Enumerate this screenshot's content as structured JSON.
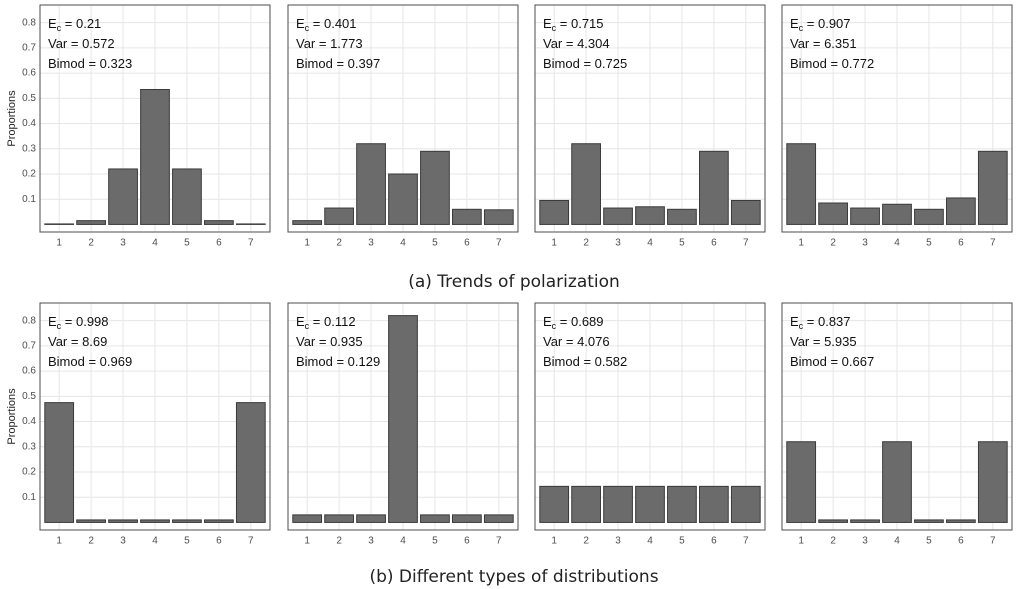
{
  "captions": [
    "(a) Trends of polarization",
    "(b) Different types of distributions"
  ],
  "chart_data": [
    {
      "type": "bar",
      "ylabel": "Proportions",
      "categories": [
        "1",
        "2",
        "3",
        "4",
        "5",
        "6",
        "7"
      ],
      "values": [
        0.002,
        0.015,
        0.22,
        0.535,
        0.22,
        0.015,
        0.002
      ],
      "annotations": [
        [
          "E",
          "c",
          " = 0.21"
        ],
        [
          "Var =  0.572"
        ],
        [
          "Bimod = 0.323"
        ]
      ],
      "color": "#6b6b6b",
      "ylim": [
        -0.03,
        0.87
      ],
      "yticks": [
        0.1,
        0.2,
        0.3,
        0.4,
        0.5,
        0.6,
        0.7,
        0.8
      ],
      "grid": true
    },
    {
      "type": "bar",
      "categories": [
        "1",
        "2",
        "3",
        "4",
        "5",
        "6",
        "7"
      ],
      "values": [
        0.015,
        0.065,
        0.32,
        0.2,
        0.29,
        0.06,
        0.058
      ],
      "annotations": [
        [
          "E",
          "c",
          " = 0.401"
        ],
        [
          "Var =  1.773"
        ],
        [
          "Bimod = 0.397"
        ]
      ],
      "color": "#6b6b6b",
      "ylim": [
        -0.03,
        0.87
      ],
      "yticks": [
        0.1,
        0.2,
        0.3,
        0.4,
        0.5,
        0.6,
        0.7,
        0.8
      ],
      "grid": true
    },
    {
      "type": "bar",
      "categories": [
        "1",
        "2",
        "3",
        "4",
        "5",
        "6",
        "7"
      ],
      "values": [
        0.095,
        0.32,
        0.065,
        0.07,
        0.06,
        0.29,
        0.095
      ],
      "annotations": [
        [
          "E",
          "c",
          " = 0.715"
        ],
        [
          "Var =  4.304"
        ],
        [
          "Bimod = 0.725"
        ]
      ],
      "color": "#6b6b6b",
      "ylim": [
        -0.03,
        0.87
      ],
      "yticks": [
        0.1,
        0.2,
        0.3,
        0.4,
        0.5,
        0.6,
        0.7,
        0.8
      ],
      "grid": true
    },
    {
      "type": "bar",
      "categories": [
        "1",
        "2",
        "3",
        "4",
        "5",
        "6",
        "7"
      ],
      "values": [
        0.32,
        0.085,
        0.065,
        0.08,
        0.06,
        0.105,
        0.29
      ],
      "annotations": [
        [
          "E",
          "c",
          " = 0.907"
        ],
        [
          "Var =  6.351"
        ],
        [
          "Bimod = 0.772"
        ]
      ],
      "color": "#6b6b6b",
      "ylim": [
        -0.03,
        0.87
      ],
      "yticks": [
        0.1,
        0.2,
        0.3,
        0.4,
        0.5,
        0.6,
        0.7,
        0.8
      ],
      "grid": true
    },
    {
      "type": "bar",
      "ylabel": "Proportions",
      "categories": [
        "1",
        "2",
        "3",
        "4",
        "5",
        "6",
        "7"
      ],
      "values": [
        0.475,
        0.01,
        0.01,
        0.01,
        0.01,
        0.01,
        0.475
      ],
      "annotations": [
        [
          "E",
          "c",
          " = 0.998"
        ],
        [
          "Var =  8.69"
        ],
        [
          "Bimod = 0.969"
        ]
      ],
      "color": "#6b6b6b",
      "ylim": [
        -0.03,
        0.87
      ],
      "yticks": [
        0.1,
        0.2,
        0.3,
        0.4,
        0.5,
        0.6,
        0.7,
        0.8
      ],
      "grid": true
    },
    {
      "type": "bar",
      "categories": [
        "1",
        "2",
        "3",
        "4",
        "5",
        "6",
        "7"
      ],
      "values": [
        0.03,
        0.03,
        0.03,
        0.82,
        0.03,
        0.03,
        0.03
      ],
      "annotations": [
        [
          "E",
          "c",
          " = 0.112"
        ],
        [
          "Var =  0.935"
        ],
        [
          "Bimod = 0.129"
        ]
      ],
      "color": "#6b6b6b",
      "ylim": [
        -0.03,
        0.87
      ],
      "yticks": [
        0.1,
        0.2,
        0.3,
        0.4,
        0.5,
        0.6,
        0.7,
        0.8
      ],
      "grid": true
    },
    {
      "type": "bar",
      "categories": [
        "1",
        "2",
        "3",
        "4",
        "5",
        "6",
        "7"
      ],
      "values": [
        0.143,
        0.143,
        0.143,
        0.143,
        0.143,
        0.143,
        0.143
      ],
      "annotations": [
        [
          "E",
          "c",
          " = 0.689"
        ],
        [
          "Var =  4.076"
        ],
        [
          "Bimod = 0.582"
        ]
      ],
      "color": "#6b6b6b",
      "ylim": [
        -0.03,
        0.87
      ],
      "yticks": [
        0.1,
        0.2,
        0.3,
        0.4,
        0.5,
        0.6,
        0.7,
        0.8
      ],
      "grid": true
    },
    {
      "type": "bar",
      "categories": [
        "1",
        "2",
        "3",
        "4",
        "5",
        "6",
        "7"
      ],
      "values": [
        0.32,
        0.01,
        0.01,
        0.32,
        0.01,
        0.01,
        0.32
      ],
      "annotations": [
        [
          "E",
          "c",
          " = 0.837"
        ],
        [
          "Var =  5.935"
        ],
        [
          "Bimod = 0.667"
        ]
      ],
      "color": "#6b6b6b",
      "ylim": [
        -0.03,
        0.87
      ],
      "yticks": [
        0.1,
        0.2,
        0.3,
        0.4,
        0.5,
        0.6,
        0.7,
        0.8
      ],
      "grid": true
    }
  ]
}
